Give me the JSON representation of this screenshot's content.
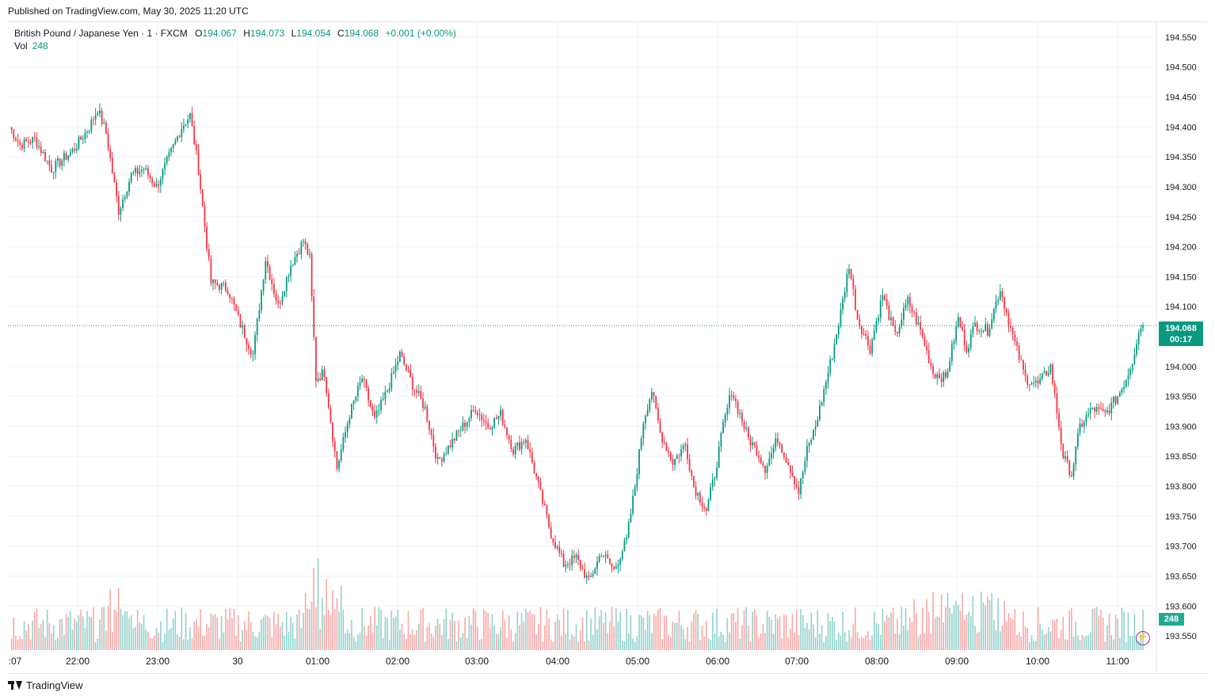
{
  "header": {
    "published": "Published on TradingView.com, May 30, 2025 11:20 UTC"
  },
  "legend": {
    "symbol": "British Pound / Japanese Yen · 1 · FXCM",
    "o_label": "O",
    "o_value": "194.067",
    "h_label": "H",
    "h_value": "194.073",
    "l_label": "L",
    "l_value": "194.054",
    "c_label": "C",
    "c_value": "194.068",
    "change": "+0.001 (+0.00%)",
    "vol_label": "Vol",
    "vol_value": "248"
  },
  "price_tag": {
    "price": "194.068",
    "countdown": "00:17"
  },
  "vol_tag": "248",
  "footer": {
    "brand": "TradingView"
  },
  "colors": {
    "up": "#089981",
    "down": "#f23645",
    "up_vol": "#92d2cc",
    "down_vol": "#f7a9a7",
    "grid": "#f0f3fa"
  },
  "chart_data": {
    "type": "candlestick",
    "y_ticks": [
      "194.550",
      "194.500",
      "194.450",
      "194.400",
      "194.350",
      "194.300",
      "194.250",
      "194.200",
      "194.150",
      "194.100",
      "194.000",
      "193.950",
      "193.900",
      "193.850",
      "193.800",
      "193.750",
      "193.700",
      "193.650",
      "193.600",
      "193.550"
    ],
    "ylim": [
      193.525,
      194.575
    ],
    "x_ticks": [
      ":07",
      "22:00",
      "23:00",
      "30",
      "01:00",
      "02:00",
      "03:00",
      "04:00",
      "05:00",
      "06:00",
      "07:00",
      "08:00",
      "09:00",
      "10:00",
      "11:00"
    ],
    "last_price": 194.068,
    "close_path": [
      [
        0,
        194.4
      ],
      [
        5,
        194.37
      ],
      [
        12,
        194.38
      ],
      [
        20,
        194.33
      ],
      [
        30,
        194.36
      ],
      [
        38,
        194.4
      ],
      [
        42,
        194.43
      ],
      [
        46,
        194.39
      ],
      [
        52,
        194.26
      ],
      [
        58,
        194.32
      ],
      [
        64,
        194.33
      ],
      [
        70,
        194.3
      ],
      [
        76,
        194.35
      ],
      [
        82,
        194.4
      ],
      [
        86,
        194.42
      ],
      [
        90,
        194.33
      ],
      [
        96,
        194.14
      ],
      [
        104,
        194.13
      ],
      [
        110,
        194.07
      ],
      [
        116,
        194.02
      ],
      [
        122,
        194.18
      ],
      [
        128,
        194.1
      ],
      [
        134,
        194.17
      ],
      [
        140,
        194.21
      ],
      [
        143,
        194.18
      ],
      [
        146,
        193.98
      ],
      [
        150,
        193.99
      ],
      [
        156,
        193.83
      ],
      [
        162,
        193.92
      ],
      [
        168,
        193.98
      ],
      [
        174,
        193.91
      ],
      [
        180,
        193.96
      ],
      [
        186,
        194.02
      ],
      [
        192,
        193.97
      ],
      [
        198,
        193.93
      ],
      [
        204,
        193.84
      ],
      [
        210,
        193.87
      ],
      [
        216,
        193.9
      ],
      [
        222,
        193.93
      ],
      [
        228,
        193.9
      ],
      [
        234,
        193.92
      ],
      [
        240,
        193.86
      ],
      [
        246,
        193.88
      ],
      [
        252,
        193.8
      ],
      [
        258,
        193.72
      ],
      [
        264,
        193.67
      ],
      [
        270,
        193.68
      ],
      [
        276,
        193.64
      ],
      [
        282,
        193.69
      ],
      [
        288,
        193.66
      ],
      [
        294,
        193.71
      ],
      [
        298,
        193.8
      ],
      [
        302,
        193.91
      ],
      [
        306,
        193.96
      ],
      [
        310,
        193.89
      ],
      [
        316,
        193.84
      ],
      [
        322,
        193.87
      ],
      [
        326,
        193.8
      ],
      [
        332,
        193.76
      ],
      [
        336,
        193.82
      ],
      [
        340,
        193.9
      ],
      [
        344,
        193.96
      ],
      [
        348,
        193.92
      ],
      [
        352,
        193.88
      ],
      [
        356,
        193.86
      ],
      [
        360,
        193.83
      ],
      [
        366,
        193.88
      ],
      [
        372,
        193.83
      ],
      [
        376,
        193.79
      ],
      [
        380,
        193.86
      ],
      [
        384,
        193.9
      ],
      [
        388,
        193.96
      ],
      [
        392,
        194.02
      ],
      [
        396,
        194.09
      ],
      [
        400,
        194.17
      ],
      [
        404,
        194.08
      ],
      [
        410,
        194.03
      ],
      [
        416,
        194.12
      ],
      [
        422,
        194.05
      ],
      [
        428,
        194.11
      ],
      [
        434,
        194.06
      ],
      [
        440,
        193.99
      ],
      [
        446,
        193.98
      ],
      [
        452,
        194.08
      ],
      [
        456,
        194.03
      ],
      [
        460,
        194.07
      ],
      [
        466,
        194.06
      ],
      [
        472,
        194.13
      ],
      [
        478,
        194.05
      ],
      [
        484,
        193.98
      ],
      [
        490,
        193.97
      ],
      [
        496,
        194.0
      ],
      [
        502,
        193.85
      ],
      [
        506,
        193.82
      ],
      [
        510,
        193.9
      ],
      [
        516,
        193.93
      ],
      [
        522,
        193.92
      ],
      [
        528,
        193.95
      ],
      [
        532,
        193.98
      ],
      [
        535,
        194.01
      ],
      [
        538,
        194.06
      ],
      [
        540,
        194.068
      ]
    ],
    "volume_note": "volume bars at bottom, peak near 01:00"
  }
}
